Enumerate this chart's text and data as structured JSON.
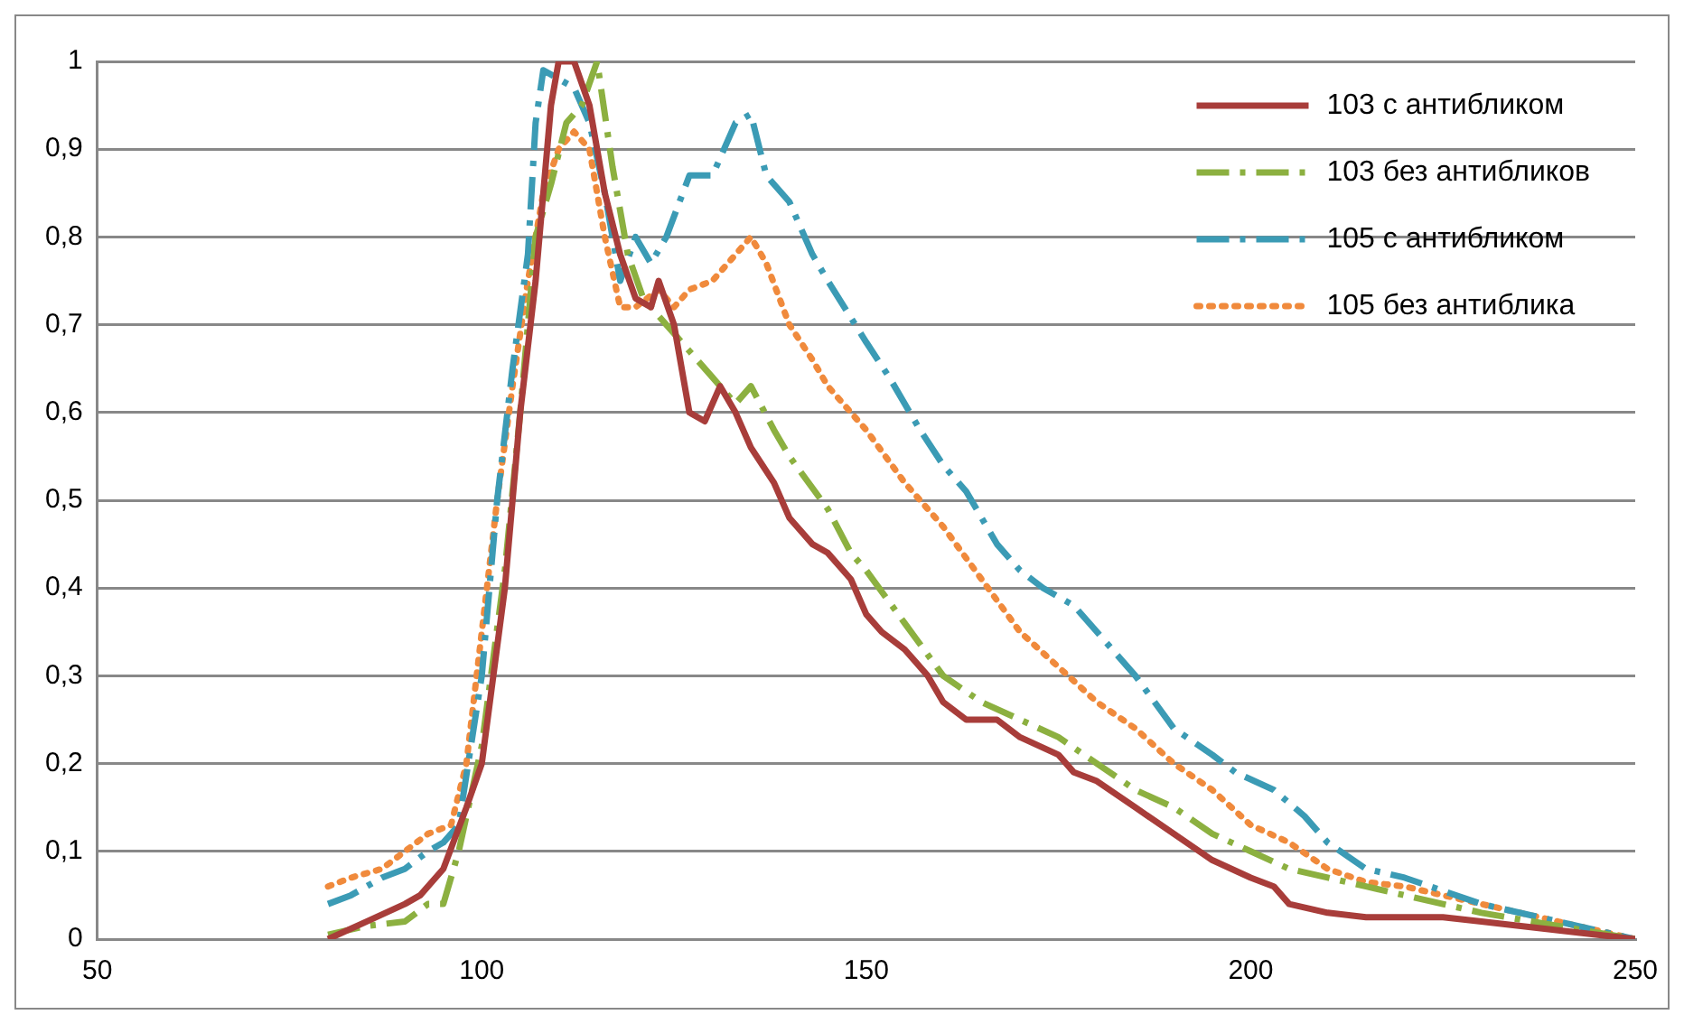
{
  "chart_data": {
    "type": "line",
    "xlim": [
      50,
      250
    ],
    "xticks": [
      50,
      100,
      150,
      200,
      250
    ],
    "ylim": [
      0,
      1
    ],
    "yticks": [
      0,
      {
        "value": 0.1,
        "label": "0,1"
      },
      {
        "value": 0.2,
        "label": "0,2"
      },
      {
        "value": 0.3,
        "label": "0,3"
      },
      {
        "value": 0.4,
        "label": "0,4"
      },
      {
        "value": 0.5,
        "label": "0,5"
      },
      {
        "value": 0.6,
        "label": "0,6"
      },
      {
        "value": 0.7,
        "label": "0,7"
      },
      {
        "value": 0.8,
        "label": "0,8"
      },
      {
        "value": 0.9,
        "label": "0,9"
      },
      1
    ],
    "grid": "y",
    "legend": "top right",
    "marker": "none",
    "series": [
      {
        "name": "103 с антибликом",
        "color": "#a83d3a",
        "line_style": "solid",
        "x": [
          80,
          85,
          90,
          92,
          95,
          98,
          100,
          103,
          105,
          107,
          109,
          110,
          112,
          114,
          116,
          118,
          120,
          122,
          123,
          125,
          127,
          129,
          131,
          133,
          135,
          138,
          140,
          143,
          145,
          148,
          150,
          152,
          155,
          158,
          160,
          163,
          167,
          170,
          175,
          177,
          180,
          185,
          190,
          195,
          200,
          203,
          205,
          210,
          215,
          225,
          230,
          240,
          250
        ],
        "values": [
          0.0,
          0.02,
          0.04,
          0.05,
          0.08,
          0.15,
          0.2,
          0.4,
          0.6,
          0.75,
          0.95,
          1.0,
          1.0,
          0.95,
          0.85,
          0.78,
          0.73,
          0.72,
          0.75,
          0.7,
          0.6,
          0.59,
          0.63,
          0.6,
          0.56,
          0.52,
          0.48,
          0.45,
          0.44,
          0.41,
          0.37,
          0.35,
          0.33,
          0.3,
          0.27,
          0.25,
          0.25,
          0.23,
          0.21,
          0.19,
          0.18,
          0.15,
          0.12,
          0.09,
          0.07,
          0.06,
          0.04,
          0.03,
          0.025,
          0.025,
          0.02,
          0.01,
          0.0
        ]
      },
      {
        "name": "103 без антибликов",
        "color": "#8cb040",
        "line_style": "dashed",
        "x": [
          80,
          85,
          90,
          93,
          95,
          97,
          100,
          103,
          105,
          107,
          109,
          111,
          113,
          115,
          117,
          119,
          121,
          124,
          127,
          130,
          133,
          135,
          138,
          140,
          145,
          148,
          150,
          155,
          160,
          165,
          170,
          175,
          180,
          185,
          190,
          195,
          200,
          205,
          210,
          215,
          220,
          230,
          240,
          250
        ],
        "values": [
          0.005,
          0.015,
          0.02,
          0.04,
          0.04,
          0.1,
          0.22,
          0.42,
          0.6,
          0.8,
          0.86,
          0.93,
          0.95,
          1.0,
          0.88,
          0.78,
          0.73,
          0.7,
          0.67,
          0.64,
          0.61,
          0.63,
          0.58,
          0.55,
          0.49,
          0.44,
          0.42,
          0.36,
          0.3,
          0.27,
          0.25,
          0.23,
          0.2,
          0.17,
          0.15,
          0.12,
          0.1,
          0.08,
          0.07,
          0.06,
          0.05,
          0.03,
          0.015,
          0.0
        ]
      },
      {
        "name": "105 с антибликом",
        "color": "#3b9bb5",
        "line_style": "dashed",
        "x": [
          80,
          83,
          87,
          90,
          93,
          95,
          97,
          100,
          102,
          104,
          106,
          107,
          108,
          110,
          112,
          114,
          116,
          118,
          120,
          122,
          124,
          127,
          130,
          133,
          135,
          137,
          140,
          143,
          145,
          150,
          153,
          157,
          160,
          163,
          167,
          170,
          173,
          177,
          180,
          185,
          190,
          195,
          198,
          203,
          207,
          210,
          215,
          220,
          230,
          240,
          250
        ],
        "values": [
          0.04,
          0.05,
          0.07,
          0.08,
          0.1,
          0.11,
          0.13,
          0.3,
          0.5,
          0.65,
          0.78,
          0.93,
          0.99,
          0.98,
          0.97,
          0.93,
          0.85,
          0.75,
          0.8,
          0.77,
          0.8,
          0.87,
          0.87,
          0.93,
          0.94,
          0.87,
          0.84,
          0.78,
          0.75,
          0.68,
          0.64,
          0.58,
          0.54,
          0.51,
          0.45,
          0.42,
          0.4,
          0.38,
          0.35,
          0.3,
          0.24,
          0.21,
          0.19,
          0.17,
          0.14,
          0.11,
          0.08,
          0.07,
          0.04,
          0.02,
          0.0
        ]
      },
      {
        "name": "105 без антиблика",
        "color": "#f08a3c",
        "line_style": "dotted",
        "x": [
          80,
          83,
          87,
          90,
          93,
          96,
          98,
          100,
          102,
          104,
          106,
          108,
          110,
          112,
          114,
          116,
          118,
          120,
          123,
          125,
          127,
          130,
          133,
          135,
          137,
          140,
          143,
          145,
          150,
          155,
          160,
          165,
          170,
          175,
          180,
          185,
          190,
          195,
          200,
          205,
          210,
          215,
          220,
          230,
          240,
          250
        ],
        "values": [
          0.06,
          0.07,
          0.08,
          0.1,
          0.12,
          0.13,
          0.2,
          0.35,
          0.5,
          0.63,
          0.75,
          0.85,
          0.9,
          0.92,
          0.9,
          0.8,
          0.72,
          0.72,
          0.74,
          0.72,
          0.74,
          0.75,
          0.78,
          0.8,
          0.77,
          0.7,
          0.66,
          0.63,
          0.58,
          0.52,
          0.47,
          0.41,
          0.35,
          0.31,
          0.27,
          0.24,
          0.2,
          0.17,
          0.13,
          0.11,
          0.08,
          0.065,
          0.06,
          0.04,
          0.02,
          0.0
        ]
      }
    ]
  }
}
